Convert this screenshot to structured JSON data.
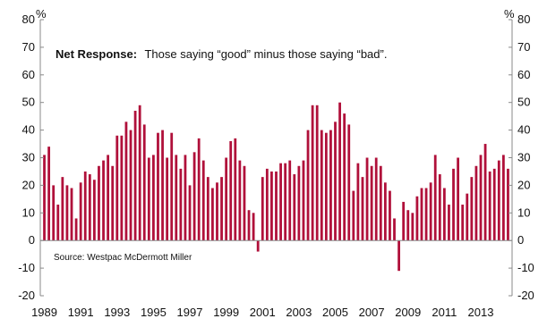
{
  "chart_data": {
    "type": "bar",
    "title": "",
    "y_unit_left": "%",
    "y_unit_right": "%",
    "ylim": [
      -20,
      80
    ],
    "yticks": [
      -20,
      -10,
      0,
      10,
      20,
      30,
      40,
      50,
      60,
      70,
      80
    ],
    "xticks": [
      "1989",
      "1991",
      "1993",
      "1995",
      "1997",
      "1999",
      "2001",
      "2003",
      "2005",
      "2007",
      "2009",
      "2011",
      "2013"
    ],
    "x_start_year": 1989,
    "bars_per_year": 4,
    "bar_color": "#b0103a",
    "grid": false,
    "annotation_bold": "Net Response:",
    "annotation_text": "Those saying “good” minus those saying “bad”.",
    "source": "Source: Westpac McDermott Miller",
    "values": [
      31,
      34,
      20,
      13,
      23,
      20,
      19,
      8,
      21,
      25,
      24,
      22,
      27,
      29,
      31,
      27,
      38,
      38,
      43,
      40,
      47,
      49,
      42,
      30,
      31,
      39,
      40,
      30,
      39,
      31,
      26,
      31,
      20,
      32,
      37,
      29,
      23,
      19,
      21,
      23,
      30,
      36,
      37,
      29,
      27,
      11,
      10,
      -4,
      23,
      26,
      25,
      25,
      28,
      28,
      29,
      24,
      27,
      29,
      40,
      49,
      49,
      40,
      39,
      40,
      43,
      50,
      46,
      42,
      18,
      28,
      23,
      30,
      27,
      30,
      27,
      21,
      18,
      8,
      -11,
      14,
      11,
      10,
      16,
      19,
      19,
      21,
      31,
      24,
      19,
      13,
      26,
      30,
      13,
      17,
      23,
      27,
      31,
      35,
      25,
      26,
      29,
      31,
      26
    ]
  }
}
